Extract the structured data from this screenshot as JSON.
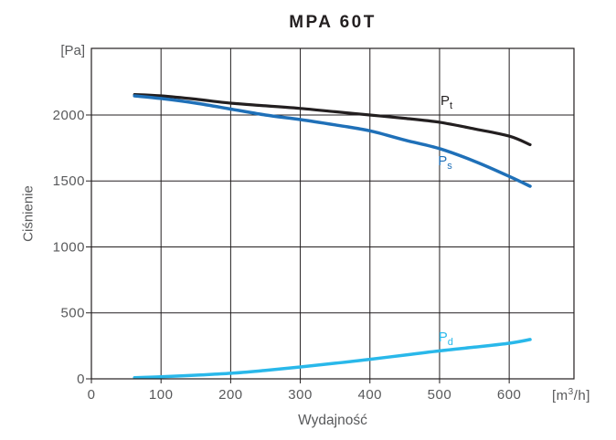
{
  "chart_data": {
    "type": "line",
    "title": "MPA 60T",
    "xlabel": "Wydajność",
    "ylabel": "Ciśnienie",
    "y_unit": "[Pa]",
    "x_unit": {
      "prefix": "[m",
      "sup": "3",
      "suffix": "/h]"
    },
    "xlim": [
      0,
      693
    ],
    "ylim": [
      0,
      2505
    ],
    "x_ticks": [
      0,
      100,
      200,
      300,
      400,
      500,
      600
    ],
    "y_ticks": [
      0,
      500,
      1000,
      1500,
      2000
    ],
    "grid": true,
    "legend_position": "inline-curve-labels",
    "axis_color": "#231f20",
    "text_color": "#58595b",
    "series": [
      {
        "name": "Pt",
        "label_main": "P",
        "label_sub": "t",
        "color": "#231f20",
        "label_at": [
          510,
          2097
        ],
        "points": [
          [
            62,
            2155
          ],
          [
            100,
            2145
          ],
          [
            150,
            2120
          ],
          [
            200,
            2090
          ],
          [
            250,
            2070
          ],
          [
            300,
            2050
          ],
          [
            350,
            2025
          ],
          [
            400,
            2000
          ],
          [
            450,
            1975
          ],
          [
            500,
            1945
          ],
          [
            550,
            1895
          ],
          [
            600,
            1840
          ],
          [
            630,
            1775
          ]
        ]
      },
      {
        "name": "Ps",
        "label_main": "P",
        "label_sub": "s",
        "color": "#1f70b8",
        "label_at": [
          508,
          1640
        ],
        "points": [
          [
            62,
            2145
          ],
          [
            100,
            2125
          ],
          [
            150,
            2090
          ],
          [
            200,
            2045
          ],
          [
            250,
            2000
          ],
          [
            300,
            1965
          ],
          [
            350,
            1925
          ],
          [
            400,
            1880
          ],
          [
            450,
            1810
          ],
          [
            500,
            1745
          ],
          [
            550,
            1650
          ],
          [
            600,
            1535
          ],
          [
            630,
            1460
          ]
        ]
      },
      {
        "name": "Pd",
        "label_main": "P",
        "label_sub": "d",
        "color": "#29b8ea",
        "label_at": [
          509,
          304
        ],
        "points": [
          [
            62,
            8
          ],
          [
            100,
            16
          ],
          [
            150,
            28
          ],
          [
            200,
            42
          ],
          [
            250,
            64
          ],
          [
            300,
            90
          ],
          [
            350,
            118
          ],
          [
            400,
            148
          ],
          [
            450,
            180
          ],
          [
            500,
            212
          ],
          [
            550,
            240
          ],
          [
            600,
            270
          ],
          [
            630,
            298
          ]
        ]
      }
    ]
  }
}
